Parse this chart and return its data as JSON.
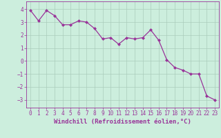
{
  "x": [
    0,
    1,
    2,
    3,
    4,
    5,
    6,
    7,
    8,
    9,
    10,
    11,
    12,
    13,
    14,
    15,
    16,
    17,
    18,
    19,
    20,
    21,
    22,
    23
  ],
  "y": [
    3.9,
    3.1,
    3.9,
    3.5,
    2.8,
    2.8,
    3.1,
    3.0,
    2.5,
    1.7,
    1.8,
    1.3,
    1.8,
    1.7,
    1.8,
    2.4,
    1.6,
    0.1,
    -0.5,
    -0.7,
    -1.0,
    -1.0,
    -2.7,
    -3.0
  ],
  "line_color": "#993399",
  "marker": "D",
  "marker_size": 2.0,
  "bg_color": "#cceedd",
  "grid_color": "#aaccbb",
  "xlabel": "Windchill (Refroidissement éolien,°C)",
  "ylim": [
    -3.6,
    4.6
  ],
  "xlim": [
    -0.5,
    23.5
  ],
  "yticks": [
    -3,
    -2,
    -1,
    0,
    1,
    2,
    3,
    4
  ],
  "xticks": [
    0,
    1,
    2,
    3,
    4,
    5,
    6,
    7,
    8,
    9,
    10,
    11,
    12,
    13,
    14,
    15,
    16,
    17,
    18,
    19,
    20,
    21,
    22,
    23
  ],
  "tick_color": "#993399",
  "label_color": "#993399",
  "xlabel_fontsize": 6.5,
  "tick_fontsize": 5.5,
  "linewidth": 0.9
}
